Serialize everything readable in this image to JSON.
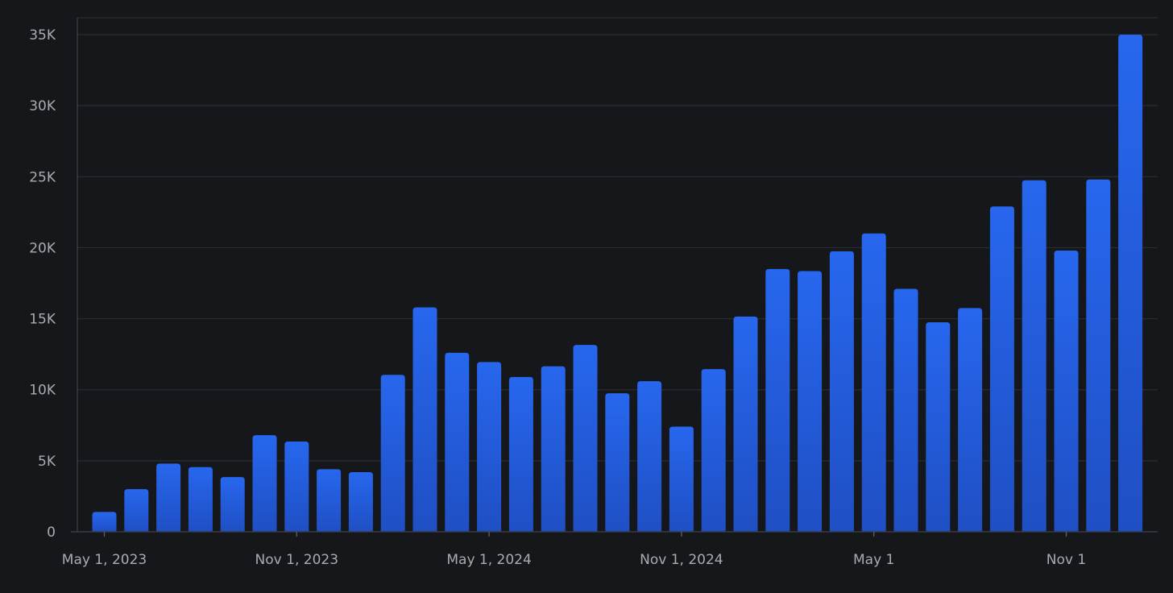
{
  "chart_data": {
    "type": "bar",
    "title": "",
    "xlabel": "",
    "ylabel": "",
    "ylim": [
      0,
      35000
    ],
    "grid": true,
    "legend": "none",
    "y_ticks": [
      {
        "value": 0,
        "label": "0"
      },
      {
        "value": 5000,
        "label": "5K"
      },
      {
        "value": 10000,
        "label": "10K"
      },
      {
        "value": 15000,
        "label": "15K"
      },
      {
        "value": 20000,
        "label": "20K"
      },
      {
        "value": 25000,
        "label": "25K"
      },
      {
        "value": 30000,
        "label": "30K"
      },
      {
        "value": 35000,
        "label": "35K"
      }
    ],
    "x_ticks": [
      {
        "category": "2023-05",
        "label": "May 1, 2023"
      },
      {
        "category": "2023-11",
        "label": "Nov 1, 2023"
      },
      {
        "category": "2024-05",
        "label": "May 1, 2024"
      },
      {
        "category": "2024-11",
        "label": "Nov 1, 2024"
      },
      {
        "category": "2025-05",
        "label": "May 1"
      },
      {
        "category": "2025-11",
        "label": "Nov 1"
      }
    ],
    "categories": [
      "2023-05",
      "2023-06",
      "2023-07",
      "2023-08",
      "2023-09",
      "2023-10",
      "2023-11",
      "2023-12",
      "2024-01",
      "2024-02",
      "2024-03",
      "2024-04",
      "2024-05",
      "2024-06",
      "2024-07",
      "2024-08",
      "2024-09",
      "2024-10",
      "2024-11",
      "2024-12",
      "2025-01",
      "2025-02",
      "2025-03",
      "2025-04",
      "2025-05",
      "2025-06",
      "2025-07",
      "2025-08",
      "2025-09",
      "2025-10",
      "2025-11",
      "2025-12",
      "2026-01"
    ],
    "values": [
      1400,
      3000,
      4800,
      4550,
      3850,
      6800,
      6350,
      4400,
      4200,
      11050,
      15800,
      12600,
      11950,
      10900,
      11650,
      13150,
      9750,
      10600,
      7400,
      11450,
      15150,
      18500,
      18350,
      19750,
      21000,
      17100,
      14750,
      15750,
      22900,
      24750,
      19800,
      24800,
      35000
    ],
    "colors": {
      "background": "#16171a",
      "bar_top": "#2767ee",
      "bar_bottom": "#1f4fc4",
      "grid": "#2a2c31",
      "tick_text": "#a9abb0"
    }
  }
}
